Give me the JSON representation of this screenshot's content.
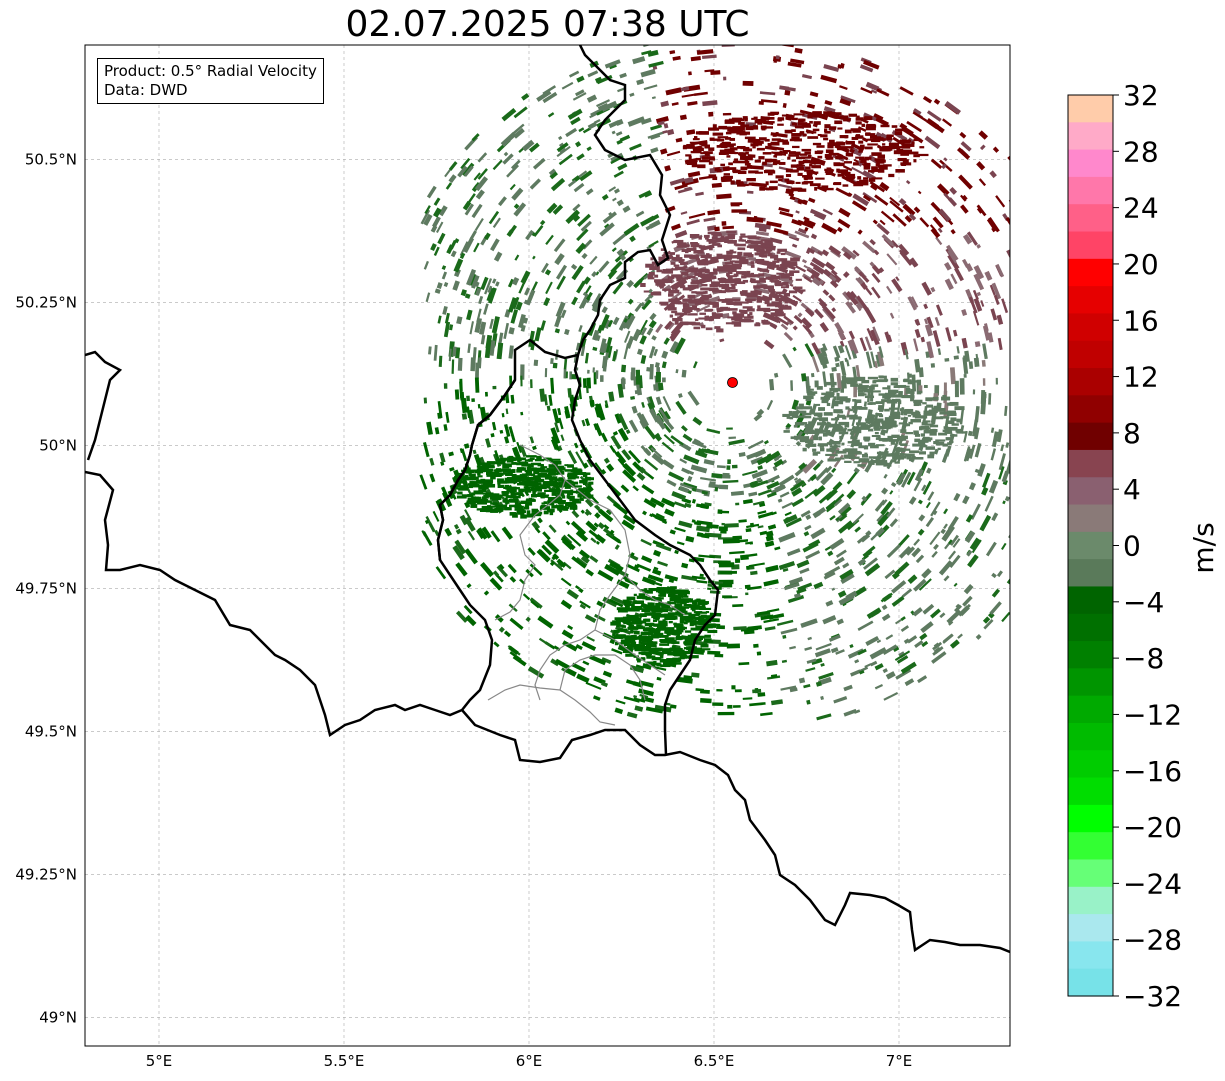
{
  "title": "02.07.2025 07:38 UTC",
  "info": {
    "product": "Product: 0.5° Radial Velocity",
    "source": "Data: DWD"
  },
  "map": {
    "lon_range": [
      4.8,
      7.3
    ],
    "lat_range": [
      48.95,
      50.7
    ],
    "x_ticks": [
      {
        "value": 5.0,
        "label": "5°E"
      },
      {
        "value": 5.5,
        "label": "5.5°E"
      },
      {
        "value": 6.0,
        "label": "6°E"
      },
      {
        "value": 6.5,
        "label": "6.5°E"
      },
      {
        "value": 7.0,
        "label": "7°E"
      }
    ],
    "y_ticks": [
      {
        "value": 49.0,
        "label": "49°N"
      },
      {
        "value": 49.25,
        "label": "49.25°N"
      },
      {
        "value": 49.5,
        "label": "49.5°N"
      },
      {
        "value": 49.75,
        "label": "49.75°N"
      },
      {
        "value": 50.0,
        "label": "50°N"
      },
      {
        "value": 50.25,
        "label": "50.25°N"
      },
      {
        "value": 50.5,
        "label": "50.5°N"
      }
    ],
    "grid": true,
    "radar_site": {
      "lon": 6.55,
      "lat": 50.11,
      "color": "#ff0000"
    }
  },
  "colorbar": {
    "unit": "m/s",
    "min": -32,
    "max": 32,
    "tick_labels": [
      "32",
      "28",
      "24",
      "20",
      "16",
      "12",
      "8",
      "4",
      "0",
      "−4",
      "−8",
      "−12",
      "−16",
      "−20",
      "−24",
      "−28",
      "−32"
    ],
    "colors_top_to_bottom": [
      "#ffccaa",
      "#ffaac8",
      "#ff88cc",
      "#ff77aa",
      "#ff6088",
      "#ff4466",
      "#ff0000",
      "#e60000",
      "#d00000",
      "#c00000",
      "#aa0000",
      "#900000",
      "#700000",
      "#884450",
      "#8a6070",
      "#8a7a78",
      "#6b8a6b",
      "#5a7a5a",
      "#006400",
      "#007000",
      "#008000",
      "#009500",
      "#00aa00",
      "#00bb00",
      "#00cc00",
      "#00dd00",
      "#00ff00",
      "#33ff33",
      "#66ff77",
      "#99f2c8",
      "#aae8ee",
      "#88e6ee",
      "#77e2e8"
    ]
  },
  "palette": {
    "outbound_dark": "#700000",
    "outbound_mid": "#7a4450",
    "outbound_light": "#8a6a72",
    "near_zero_gray": "#8a7a78",
    "inbound_gray": "#5e7a60",
    "inbound_green": "#006400",
    "inbound_green2": "#1a6a1a"
  }
}
